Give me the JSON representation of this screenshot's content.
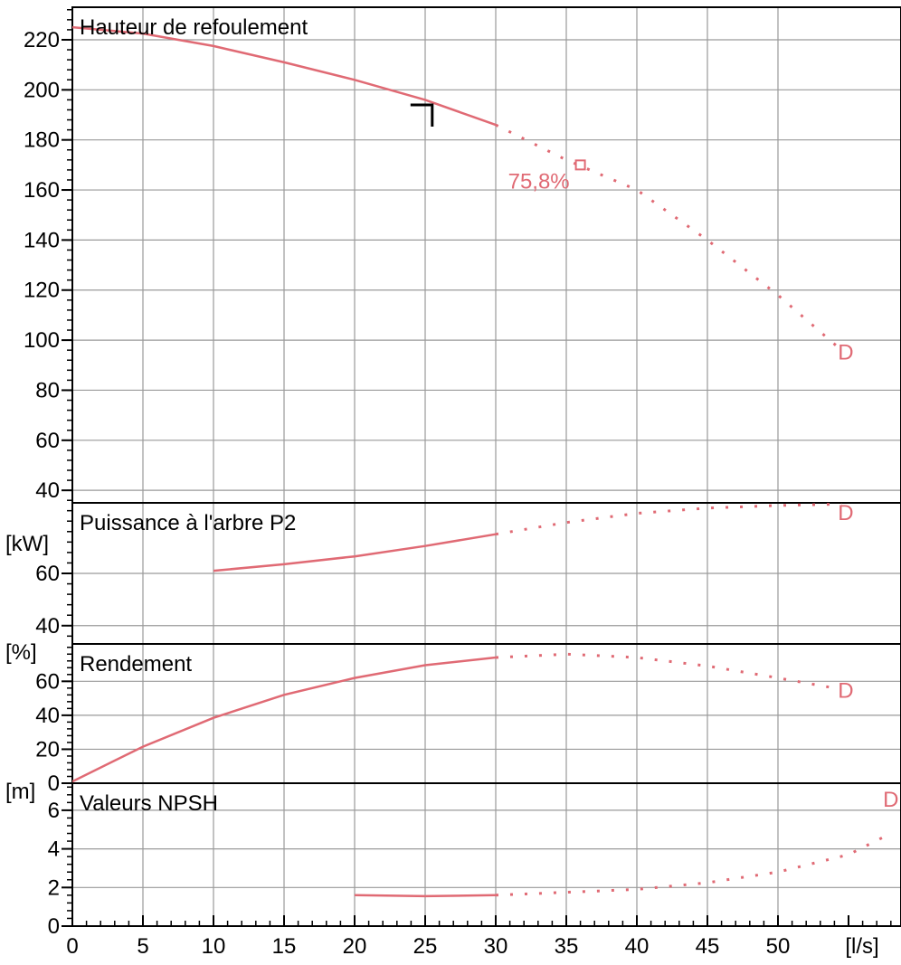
{
  "chart_data": {
    "type": "line",
    "colors": {
      "curve": "#e06a74",
      "grid": "#9a9a9a",
      "axis": "#000000",
      "operating_point": "#000000"
    },
    "x_axis": {
      "unit": "[l/s]",
      "range": [
        0,
        58
      ],
      "ticks": [
        0,
        5,
        10,
        15,
        20,
        25,
        30,
        35,
        40,
        45,
        50
      ],
      "tick_labels": [
        "0",
        "5",
        "10",
        "15",
        "20",
        "25",
        "30",
        "35",
        "40",
        "45",
        "50"
      ]
    },
    "panels": [
      {
        "title": "Hauteur de refoulement",
        "unit": "",
        "ylim": [
          35,
          233
        ],
        "yticks": [
          40,
          60,
          80,
          100,
          120,
          140,
          160,
          180,
          200,
          220
        ],
        "ytick_labels": [
          "40",
          "60",
          "80",
          "100",
          "120",
          "140",
          "160",
          "180",
          "200",
          "220"
        ],
        "curve_solid": [
          [
            0,
            225
          ],
          [
            5,
            222.5
          ],
          [
            10,
            217.5
          ],
          [
            15,
            211
          ],
          [
            20,
            204
          ],
          [
            25,
            196
          ],
          [
            30,
            186
          ]
        ],
        "curve_dotted": [
          [
            30,
            186
          ],
          [
            35,
            172
          ],
          [
            40,
            160
          ],
          [
            45,
            140
          ],
          [
            50,
            118
          ],
          [
            54.5,
            96
          ]
        ],
        "operating_point": [
          25.5,
          194
        ],
        "bep_marker": {
          "point": [
            36,
            170
          ],
          "label": "75,8%"
        },
        "end_marker": {
          "point": [
            54.8,
            95.5
          ],
          "label": "D"
        }
      },
      {
        "title": "Puissance à l'arbre P2",
        "unit": "[kW]",
        "ylim": [
          33,
          87
        ],
        "yticks": [
          40,
          60
        ],
        "ytick_labels": [
          "40",
          "60"
        ],
        "curve_solid": [
          [
            10,
            61
          ],
          [
            15,
            63.5
          ],
          [
            20,
            66.5
          ],
          [
            25,
            70.5
          ],
          [
            30,
            75
          ]
        ],
        "curve_dotted": [
          [
            30,
            75
          ],
          [
            35,
            79.5
          ],
          [
            40,
            83
          ],
          [
            45,
            85
          ],
          [
            50,
            86
          ],
          [
            54.5,
            86.5
          ]
        ],
        "end_marker": {
          "point": [
            54.8,
            83.5
          ],
          "label": "D"
        }
      },
      {
        "title": "Rendement",
        "unit": "[%]",
        "ylim": [
          0,
          82
        ],
        "yticks": [
          0,
          20,
          40,
          60
        ],
        "ytick_labels": [
          "0",
          "20",
          "40",
          "60"
        ],
        "curve_solid": [
          [
            0,
            1
          ],
          [
            5,
            21.5
          ],
          [
            10,
            38.5
          ],
          [
            15,
            52
          ],
          [
            20,
            62
          ],
          [
            25,
            69.5
          ],
          [
            30,
            74
          ]
        ],
        "curve_dotted": [
          [
            30,
            74
          ],
          [
            35,
            76
          ],
          [
            40,
            74
          ],
          [
            45,
            69
          ],
          [
            50,
            62
          ],
          [
            54,
            56
          ]
        ],
        "end_marker": {
          "point": [
            54.8,
            55
          ],
          "label": "D"
        }
      },
      {
        "title": "Valeurs NPSH",
        "unit": "[m]",
        "ylim": [
          0,
          7.4
        ],
        "yticks": [
          0,
          2,
          4,
          6
        ],
        "ytick_labels": [
          "0",
          "2",
          "4",
          "6"
        ],
        "curve_solid": [
          [
            20,
            1.6
          ],
          [
            25,
            1.55
          ],
          [
            30,
            1.6
          ]
        ],
        "curve_dotted": [
          [
            30,
            1.6
          ],
          [
            35,
            1.75
          ],
          [
            40,
            1.9
          ],
          [
            45,
            2.25
          ],
          [
            50,
            2.8
          ],
          [
            55,
            3.7
          ],
          [
            58,
            4.8
          ]
        ],
        "end_marker": {
          "point": [
            58,
            6.6
          ],
          "label": "D"
        }
      }
    ]
  }
}
